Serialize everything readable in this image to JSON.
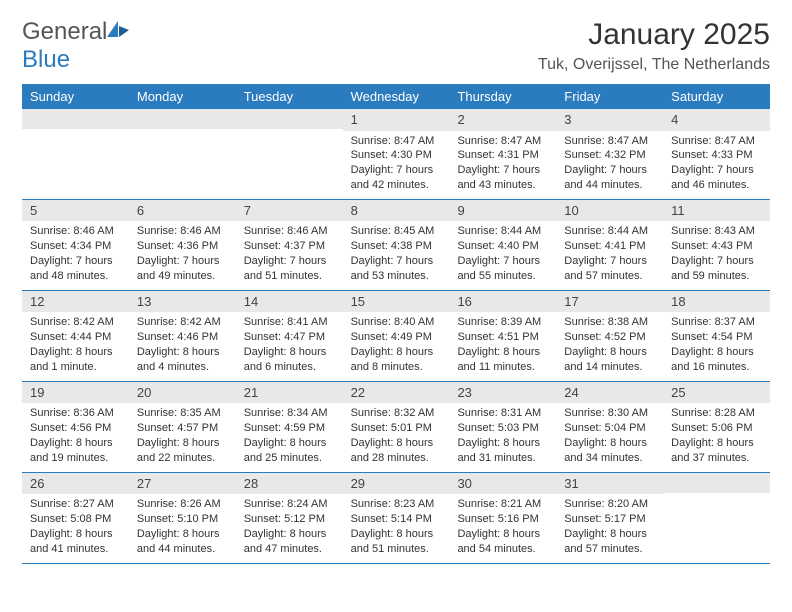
{
  "logo": {
    "word1": "General",
    "word2": "Blue"
  },
  "title": "January 2025",
  "location": "Tuk, Overijssel, The Netherlands",
  "colors": {
    "header_bg": "#2b7bbf",
    "header_text": "#ffffff",
    "daynum_bg": "#e8e8e8",
    "border": "#2b7bbf",
    "text": "#333333",
    "logo_gray": "#555555",
    "logo_blue": "#2b7bbf",
    "background": "#ffffff"
  },
  "typography": {
    "title_fontsize": 30,
    "location_fontsize": 16,
    "dayheader_fontsize": 13,
    "daynum_fontsize": 13,
    "body_fontsize": 11,
    "font_family": "Arial"
  },
  "day_headers": [
    "Sunday",
    "Monday",
    "Tuesday",
    "Wednesday",
    "Thursday",
    "Friday",
    "Saturday"
  ],
  "weeks": [
    [
      {
        "n": "",
        "sr": "",
        "ss": "",
        "dl": ""
      },
      {
        "n": "",
        "sr": "",
        "ss": "",
        "dl": ""
      },
      {
        "n": "",
        "sr": "",
        "ss": "",
        "dl": ""
      },
      {
        "n": "1",
        "sr": "Sunrise: 8:47 AM",
        "ss": "Sunset: 4:30 PM",
        "dl": "Daylight: 7 hours and 42 minutes."
      },
      {
        "n": "2",
        "sr": "Sunrise: 8:47 AM",
        "ss": "Sunset: 4:31 PM",
        "dl": "Daylight: 7 hours and 43 minutes."
      },
      {
        "n": "3",
        "sr": "Sunrise: 8:47 AM",
        "ss": "Sunset: 4:32 PM",
        "dl": "Daylight: 7 hours and 44 minutes."
      },
      {
        "n": "4",
        "sr": "Sunrise: 8:47 AM",
        "ss": "Sunset: 4:33 PM",
        "dl": "Daylight: 7 hours and 46 minutes."
      }
    ],
    [
      {
        "n": "5",
        "sr": "Sunrise: 8:46 AM",
        "ss": "Sunset: 4:34 PM",
        "dl": "Daylight: 7 hours and 48 minutes."
      },
      {
        "n": "6",
        "sr": "Sunrise: 8:46 AM",
        "ss": "Sunset: 4:36 PM",
        "dl": "Daylight: 7 hours and 49 minutes."
      },
      {
        "n": "7",
        "sr": "Sunrise: 8:46 AM",
        "ss": "Sunset: 4:37 PM",
        "dl": "Daylight: 7 hours and 51 minutes."
      },
      {
        "n": "8",
        "sr": "Sunrise: 8:45 AM",
        "ss": "Sunset: 4:38 PM",
        "dl": "Daylight: 7 hours and 53 minutes."
      },
      {
        "n": "9",
        "sr": "Sunrise: 8:44 AM",
        "ss": "Sunset: 4:40 PM",
        "dl": "Daylight: 7 hours and 55 minutes."
      },
      {
        "n": "10",
        "sr": "Sunrise: 8:44 AM",
        "ss": "Sunset: 4:41 PM",
        "dl": "Daylight: 7 hours and 57 minutes."
      },
      {
        "n": "11",
        "sr": "Sunrise: 8:43 AM",
        "ss": "Sunset: 4:43 PM",
        "dl": "Daylight: 7 hours and 59 minutes."
      }
    ],
    [
      {
        "n": "12",
        "sr": "Sunrise: 8:42 AM",
        "ss": "Sunset: 4:44 PM",
        "dl": "Daylight: 8 hours and 1 minute."
      },
      {
        "n": "13",
        "sr": "Sunrise: 8:42 AM",
        "ss": "Sunset: 4:46 PM",
        "dl": "Daylight: 8 hours and 4 minutes."
      },
      {
        "n": "14",
        "sr": "Sunrise: 8:41 AM",
        "ss": "Sunset: 4:47 PM",
        "dl": "Daylight: 8 hours and 6 minutes."
      },
      {
        "n": "15",
        "sr": "Sunrise: 8:40 AM",
        "ss": "Sunset: 4:49 PM",
        "dl": "Daylight: 8 hours and 8 minutes."
      },
      {
        "n": "16",
        "sr": "Sunrise: 8:39 AM",
        "ss": "Sunset: 4:51 PM",
        "dl": "Daylight: 8 hours and 11 minutes."
      },
      {
        "n": "17",
        "sr": "Sunrise: 8:38 AM",
        "ss": "Sunset: 4:52 PM",
        "dl": "Daylight: 8 hours and 14 minutes."
      },
      {
        "n": "18",
        "sr": "Sunrise: 8:37 AM",
        "ss": "Sunset: 4:54 PM",
        "dl": "Daylight: 8 hours and 16 minutes."
      }
    ],
    [
      {
        "n": "19",
        "sr": "Sunrise: 8:36 AM",
        "ss": "Sunset: 4:56 PM",
        "dl": "Daylight: 8 hours and 19 minutes."
      },
      {
        "n": "20",
        "sr": "Sunrise: 8:35 AM",
        "ss": "Sunset: 4:57 PM",
        "dl": "Daylight: 8 hours and 22 minutes."
      },
      {
        "n": "21",
        "sr": "Sunrise: 8:34 AM",
        "ss": "Sunset: 4:59 PM",
        "dl": "Daylight: 8 hours and 25 minutes."
      },
      {
        "n": "22",
        "sr": "Sunrise: 8:32 AM",
        "ss": "Sunset: 5:01 PM",
        "dl": "Daylight: 8 hours and 28 minutes."
      },
      {
        "n": "23",
        "sr": "Sunrise: 8:31 AM",
        "ss": "Sunset: 5:03 PM",
        "dl": "Daylight: 8 hours and 31 minutes."
      },
      {
        "n": "24",
        "sr": "Sunrise: 8:30 AM",
        "ss": "Sunset: 5:04 PM",
        "dl": "Daylight: 8 hours and 34 minutes."
      },
      {
        "n": "25",
        "sr": "Sunrise: 8:28 AM",
        "ss": "Sunset: 5:06 PM",
        "dl": "Daylight: 8 hours and 37 minutes."
      }
    ],
    [
      {
        "n": "26",
        "sr": "Sunrise: 8:27 AM",
        "ss": "Sunset: 5:08 PM",
        "dl": "Daylight: 8 hours and 41 minutes."
      },
      {
        "n": "27",
        "sr": "Sunrise: 8:26 AM",
        "ss": "Sunset: 5:10 PM",
        "dl": "Daylight: 8 hours and 44 minutes."
      },
      {
        "n": "28",
        "sr": "Sunrise: 8:24 AM",
        "ss": "Sunset: 5:12 PM",
        "dl": "Daylight: 8 hours and 47 minutes."
      },
      {
        "n": "29",
        "sr": "Sunrise: 8:23 AM",
        "ss": "Sunset: 5:14 PM",
        "dl": "Daylight: 8 hours and 51 minutes."
      },
      {
        "n": "30",
        "sr": "Sunrise: 8:21 AM",
        "ss": "Sunset: 5:16 PM",
        "dl": "Daylight: 8 hours and 54 minutes."
      },
      {
        "n": "31",
        "sr": "Sunrise: 8:20 AM",
        "ss": "Sunset: 5:17 PM",
        "dl": "Daylight: 8 hours and 57 minutes."
      },
      {
        "n": "",
        "sr": "",
        "ss": "",
        "dl": ""
      }
    ]
  ]
}
